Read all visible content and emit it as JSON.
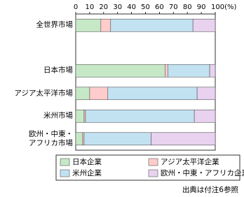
{
  "chart_data": {
    "type": "stacked-bar-horizontal",
    "categories": [
      "全世界市場",
      null,
      "日本市場",
      "アジア太平洋市場",
      "米州市場",
      "欧州・中東・\nアフリカ市場"
    ],
    "series": [
      {
        "name": "日本企業",
        "color": "#c6e8c6",
        "values": [
          18,
          null,
          64,
          10,
          6,
          5
        ]
      },
      {
        "name": "アジア太平洋企業",
        "color": "#ffcccc",
        "values": [
          7,
          null,
          2,
          13,
          1,
          1
        ]
      },
      {
        "name": "米州企業",
        "color": "#c2e2f2",
        "values": [
          59,
          null,
          30,
          64,
          78,
          48
        ]
      },
      {
        "name": "欧州・中東・アフリカ企業",
        "color": "#e8d2f0",
        "values": [
          16,
          null,
          4,
          13,
          15,
          46
        ]
      }
    ],
    "xlim": [
      0,
      100
    ],
    "xticks": [
      0,
      10,
      20,
      30,
      40,
      50,
      60,
      70,
      80,
      90,
      {
        "value": 100,
        "label": "100(%)"
      }
    ],
    "grid": false,
    "source": "出典は付注6参照"
  }
}
